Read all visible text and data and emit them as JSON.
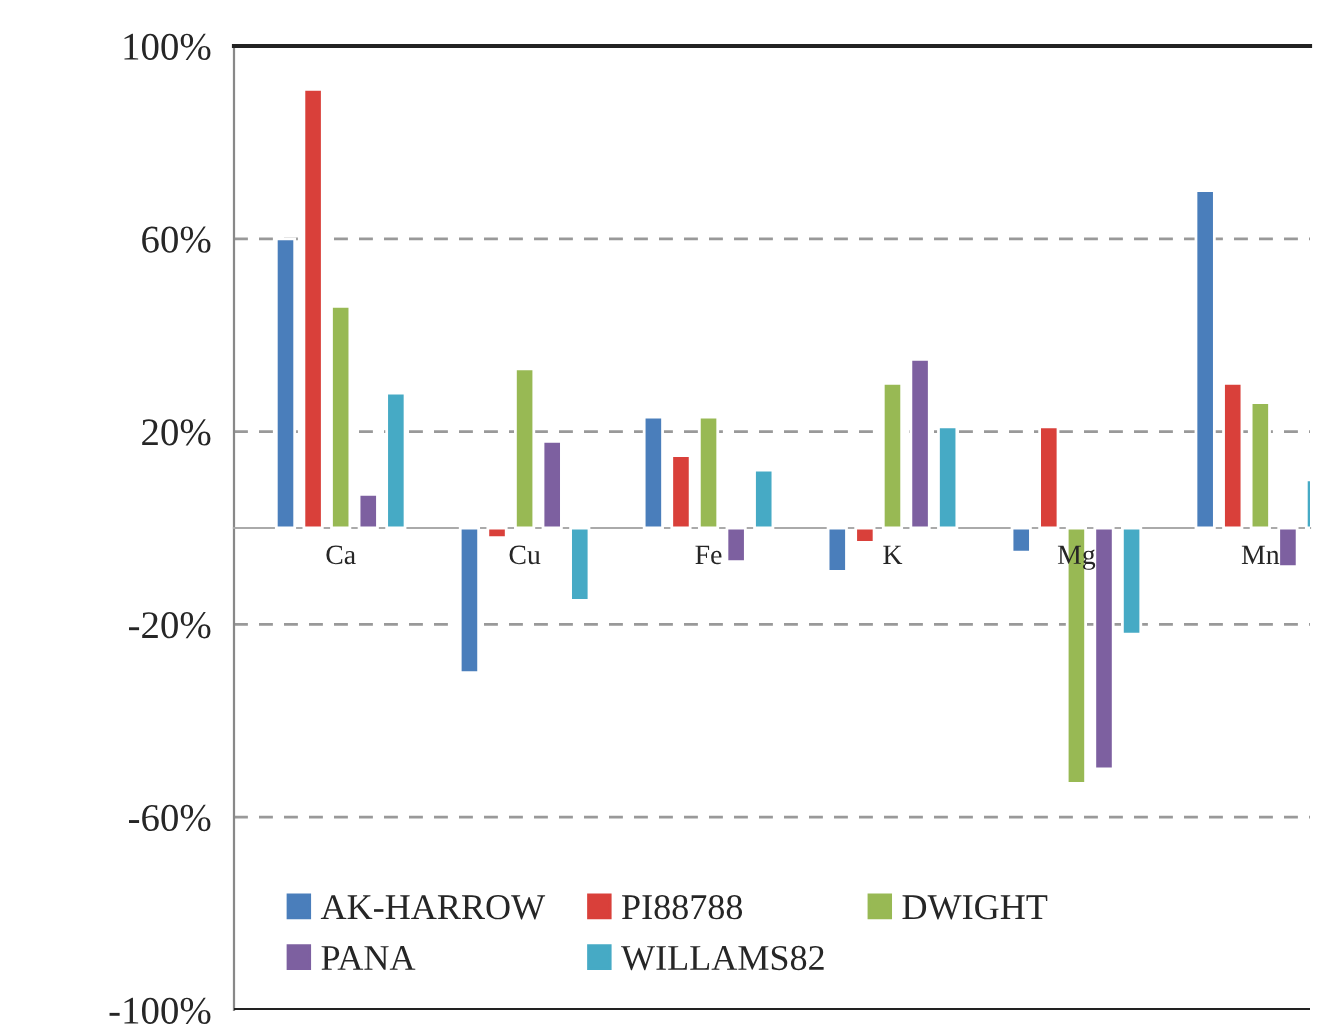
{
  "chart_data": {
    "type": "bar",
    "categories": [
      "Ca",
      "Cu",
      "Fe",
      "K",
      "Mg",
      "Mn"
    ],
    "series": [
      {
        "name": "AK-HARROW",
        "color": "#4a7ebb",
        "values": [
          60,
          -30,
          23,
          -9,
          -5,
          70
        ]
      },
      {
        "name": "PI88788",
        "color": "#d9403a",
        "values": [
          91,
          -2,
          15,
          -3,
          21,
          30
        ]
      },
      {
        "name": "DWIGHT",
        "color": "#98b954",
        "values": [
          46,
          33,
          23,
          30,
          -53,
          26
        ]
      },
      {
        "name": "PANA",
        "color": "#7d60a0",
        "values": [
          7,
          18,
          -7,
          35,
          -50,
          -8
        ]
      },
      {
        "name": "WILLAMS82",
        "color": "#46aac5",
        "values": [
          28,
          -15,
          12,
          21,
          -22,
          10
        ]
      }
    ],
    "ylim": [
      -100,
      100
    ],
    "yticks": [
      {
        "value": -100,
        "label": "-100%"
      },
      {
        "value": -60,
        "label": "-60%"
      },
      {
        "value": -20,
        "label": "-20%"
      },
      {
        "value": 20,
        "label": "20%"
      },
      {
        "value": 60,
        "label": "60%"
      },
      {
        "value": 100,
        "label": "100%"
      }
    ],
    "grid": "y",
    "legend": "bottom left"
  }
}
